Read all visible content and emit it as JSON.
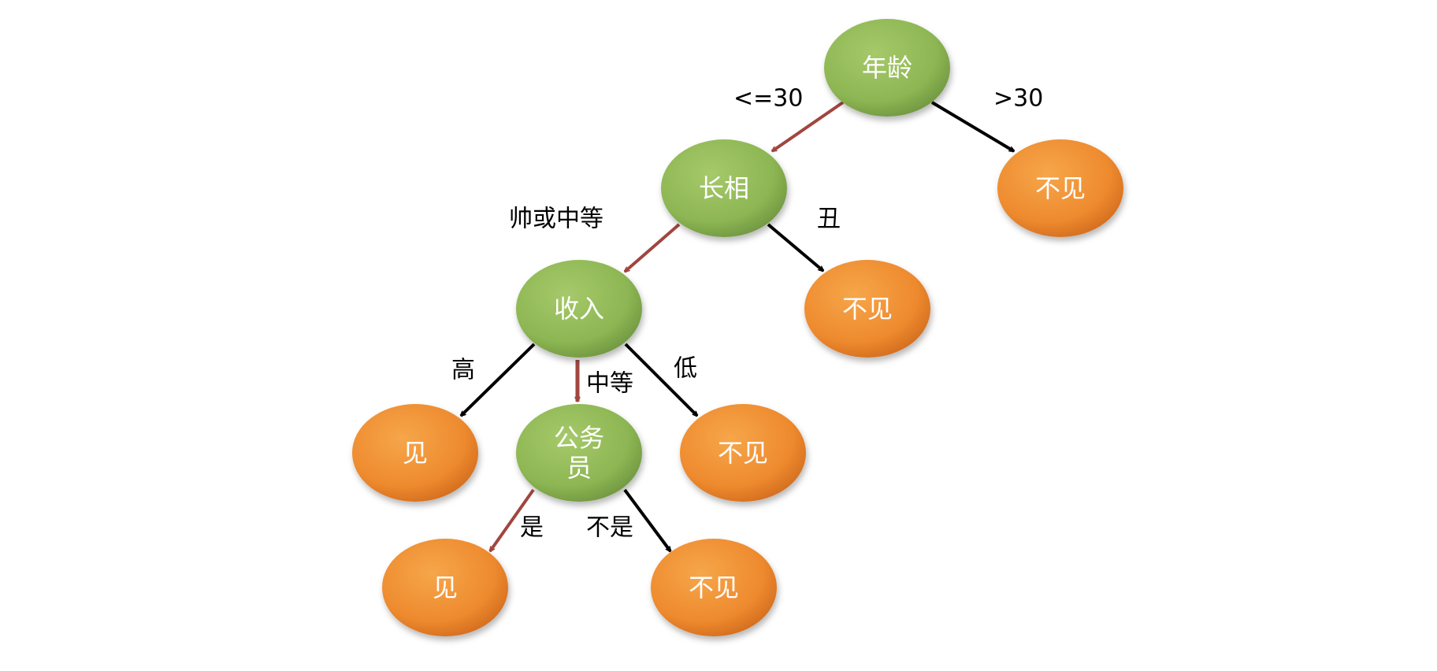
{
  "colors": {
    "decision": "#8db653",
    "decision_light": "#a6c96a",
    "decision_dark": "#6f9640",
    "leaf": "#ee8a2e",
    "leaf_light": "#f6a64a",
    "leaf_dark": "#d26c1f",
    "path_edge": "#a0463f",
    "other_edge": "#000000",
    "background": "#ffffff"
  },
  "nodes": {
    "age": "年龄",
    "appearance": "长相",
    "income": "收入",
    "civil_servant_line1": "公务",
    "civil_servant_line2": "员",
    "leaf_age_over_30": "不见",
    "leaf_ugly": "不见",
    "leaf_income_high": "见",
    "leaf_income_low": "不见",
    "leaf_civil_yes": "见",
    "leaf_civil_no": "不见"
  },
  "edges": {
    "age_le_30": "<=30",
    "age_gt_30": ">30",
    "appearance_handsome_or_medium": "帅或中等",
    "appearance_ugly": "丑",
    "income_high": "高",
    "income_medium": "中等",
    "income_low": "低",
    "civil_yes": "是",
    "civil_no": "不是"
  }
}
